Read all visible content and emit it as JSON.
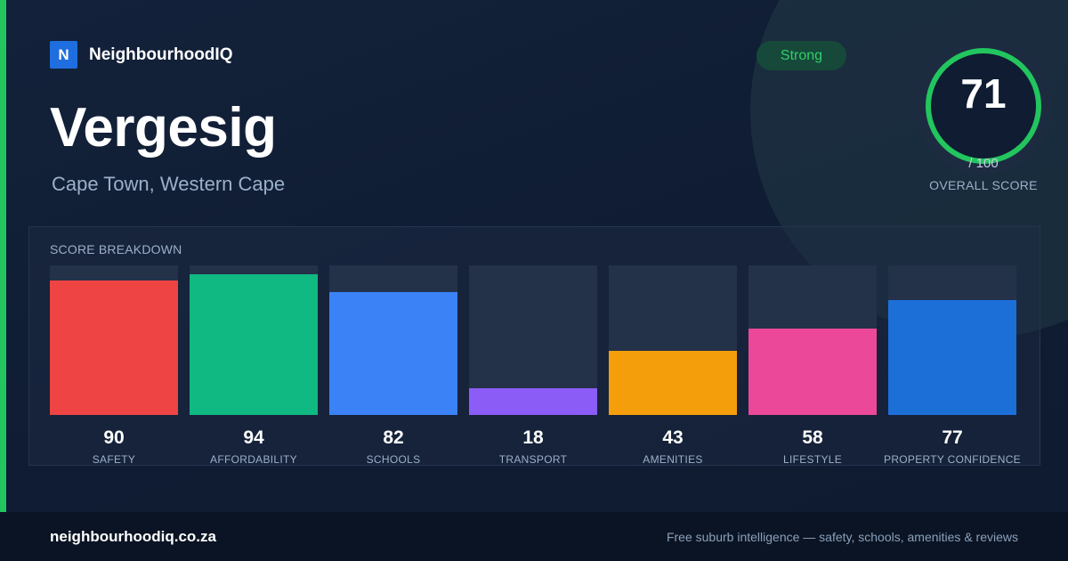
{
  "brand": {
    "badge_letter": "N",
    "name": "NeighbourhoodIQ",
    "badge_color": "#1e6ee0"
  },
  "suburb": {
    "name": "Vergesig",
    "location": "Cape Town, Western Cape"
  },
  "rating_pill": {
    "label": "Strong",
    "color": "#2fd06a"
  },
  "overall": {
    "score": "71",
    "max_label": "/ 100",
    "caption": "OVERALL SCORE",
    "fraction": 0.71,
    "color": "#22c55e"
  },
  "breakdown": {
    "title": "SCORE BREAKDOWN",
    "items": [
      {
        "label": "SAFETY",
        "value": 90,
        "color": "#ef4444"
      },
      {
        "label": "AFFORDABILITY",
        "value": 94,
        "color": "#10b981"
      },
      {
        "label": "SCHOOLS",
        "value": 82,
        "color": "#3b82f6"
      },
      {
        "label": "TRANSPORT",
        "value": 18,
        "color": "#8b5cf6"
      },
      {
        "label": "AMENITIES",
        "value": 43,
        "color": "#f59e0b"
      },
      {
        "label": "LIFESTYLE",
        "value": 58,
        "color": "#ec4899"
      },
      {
        "label": "PROPERTY CONFIDENCE",
        "value": 77,
        "color": "#1d6fd8"
      }
    ]
  },
  "footer": {
    "url": "neighbourhoodiq.co.za",
    "tagline": "Free suburb intelligence — safety, schools, amenities & reviews"
  }
}
